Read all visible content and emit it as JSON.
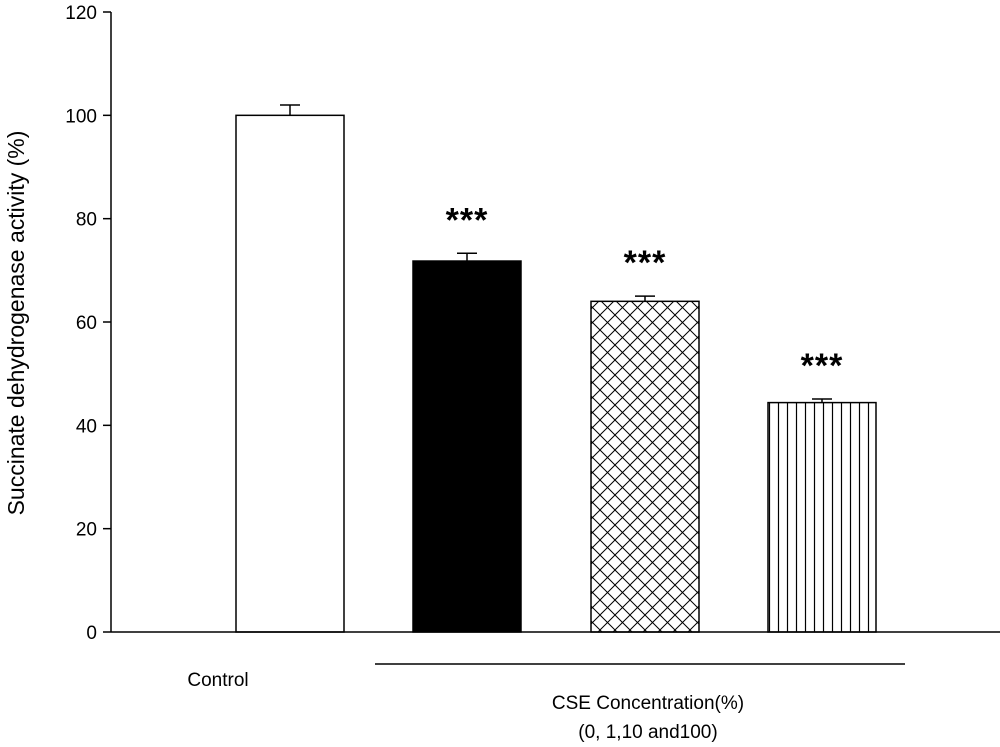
{
  "chart_data": {
    "type": "bar",
    "ylabel": "Succinate dehydrogenase activity (%)",
    "xlabel": "",
    "ylim": [
      0,
      120
    ],
    "yticks": [
      0,
      20,
      40,
      60,
      80,
      100,
      120
    ],
    "grid": false,
    "legend": "none",
    "bars": [
      {
        "value": 100,
        "error": 2,
        "fill": "white",
        "significance": ""
      },
      {
        "value": 71.8,
        "error": 1.5,
        "fill": "black",
        "significance": "***"
      },
      {
        "value": 64,
        "error": 1,
        "fill": "crosshatch",
        "significance": "***"
      },
      {
        "value": 44.4,
        "error": 0.7,
        "fill": "vertical-lines",
        "significance": "***"
      }
    ],
    "group_labels": {
      "control": "Control",
      "treatment_line1": "CSE Concentration(%)",
      "treatment_line2": "(0, 1,10 and100)"
    }
  }
}
